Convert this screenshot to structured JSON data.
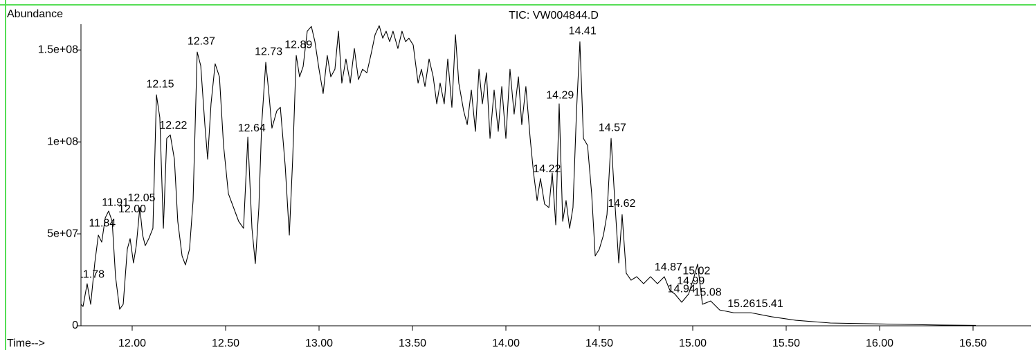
{
  "chart_data": {
    "type": "line",
    "title": "TIC: VW004844.D",
    "y_label": "Abundance",
    "x_label": "Time-->",
    "color": "#000000",
    "xlim": [
      11.726,
      16.811
    ],
    "ylim": [
      0,
      164000000
    ],
    "xticks": [
      {
        "value": 12,
        "label": "12.00"
      },
      {
        "value": 12.5,
        "label": "12.50"
      },
      {
        "value": 13,
        "label": "13.00"
      },
      {
        "value": 13.5,
        "label": "13.50"
      },
      {
        "value": 14,
        "label": "14.00"
      },
      {
        "value": 14.5,
        "label": "14.50"
      },
      {
        "value": 15,
        "label": "15.00"
      },
      {
        "value": 15.5,
        "label": "15.50"
      },
      {
        "value": 16,
        "label": "16.00"
      },
      {
        "value": 16.5,
        "label": "16.50"
      }
    ],
    "yticks": [
      0,
      {
        "value": 50000000,
        "label": "5e+07"
      },
      {
        "value": 100000000,
        "label": "1e+08"
      },
      {
        "value": 150000000,
        "label": "1.5e+08"
      }
    ],
    "x": [
      11.726,
      11.737,
      11.759,
      11.778,
      11.8,
      11.819,
      11.837,
      11.856,
      11.874,
      11.893,
      11.911,
      11.933,
      11.952,
      11.974,
      11.989,
      12.007,
      12.022,
      12.041,
      12.056,
      12.07,
      12.089,
      12.111,
      12.13,
      12.148,
      12.167,
      12.185,
      12.204,
      12.226,
      12.244,
      12.267,
      12.285,
      12.307,
      12.326,
      12.348,
      12.367,
      12.389,
      12.404,
      12.422,
      12.444,
      12.467,
      12.489,
      12.515,
      12.57,
      12.596,
      12.619,
      12.641,
      12.659,
      12.678,
      12.693,
      12.715,
      12.73,
      12.748,
      12.774,
      12.793,
      12.819,
      12.841,
      12.859,
      12.878,
      12.896,
      12.915,
      12.937,
      12.959,
      12.978,
      13.0,
      13.022,
      13.044,
      13.063,
      13.085,
      13.104,
      13.122,
      13.144,
      13.167,
      13.189,
      13.211,
      13.233,
      13.256,
      13.281,
      13.3,
      13.322,
      13.341,
      13.359,
      13.378,
      13.396,
      13.422,
      13.444,
      13.463,
      13.481,
      13.504,
      13.53,
      13.548,
      13.567,
      13.589,
      13.611,
      13.63,
      13.648,
      13.67,
      13.689,
      13.711,
      13.73,
      13.748,
      13.774,
      13.793,
      13.815,
      13.837,
      13.856,
      13.874,
      13.896,
      13.915,
      13.937,
      13.959,
      13.978,
      14.0,
      14.022,
      14.044,
      14.067,
      14.085,
      14.107,
      14.13,
      14.148,
      14.167,
      14.185,
      14.207,
      14.23,
      14.248,
      14.267,
      14.285,
      14.304,
      14.322,
      14.341,
      14.359,
      14.378,
      14.396,
      14.415,
      14.437,
      14.459,
      14.478,
      14.5,
      14.522,
      14.541,
      14.563,
      14.585,
      14.604,
      14.622,
      14.644,
      14.67,
      14.7,
      14.737,
      14.774,
      14.811,
      14.848,
      14.878,
      14.904,
      14.941,
      14.978,
      15.007,
      15.026,
      15.052,
      15.096,
      15.144,
      15.219,
      15.311,
      15.422,
      15.552,
      15.737,
      16.107,
      16.33,
      16.515
    ],
    "values": [
      11700000,
      10500000,
      22900000,
      11700000,
      34200000,
      49300000,
      45500000,
      58700000,
      62400000,
      56800000,
      26700000,
      9000000,
      11700000,
      41700000,
      47400000,
      34200000,
      43600000,
      64300000,
      49300000,
      43600000,
      47400000,
      53000000,
      125600000,
      113200000,
      53000000,
      101900000,
      103800000,
      90600000,
      56800000,
      38000000,
      33100000,
      41700000,
      68100000,
      148900000,
      141400000,
      109400000,
      90600000,
      120700000,
      142500000,
      135400000,
      98100000,
      71800000,
      56800000,
      53000000,
      102600000,
      53000000,
      33800000,
      64300000,
      109400000,
      143300000,
      128200000,
      107500000,
      116900000,
      118800000,
      86900000,
      49300000,
      90600000,
      147000000,
      135400000,
      141000000,
      160200000,
      162800000,
      154500000,
      139500000,
      126300000,
      147000000,
      135400000,
      139500000,
      160200000,
      132000000,
      145100000,
      132000000,
      150800000,
      133900000,
      139500000,
      137600000,
      148900000,
      158300000,
      163200000,
      156400000,
      160200000,
      154500000,
      160200000,
      150800000,
      160200000,
      154500000,
      156400000,
      152700000,
      132000000,
      139500000,
      130100000,
      145100000,
      135400000,
      120700000,
      132000000,
      120700000,
      145100000,
      118800000,
      158300000,
      132000000,
      116900000,
      109400000,
      128200000,
      105700000,
      139500000,
      120700000,
      137600000,
      101900000,
      128200000,
      105700000,
      130100000,
      101900000,
      139500000,
      115100000,
      135400000,
      109400000,
      130100000,
      101900000,
      83100000,
      68100000,
      80100000,
      66200000,
      64300000,
      83100000,
      54900000,
      120700000,
      56800000,
      68100000,
      53000000,
      64300000,
      116900000,
      154500000,
      101900000,
      98100000,
      71800000,
      38000000,
      41700000,
      49300000,
      60500000,
      101900000,
      64300000,
      34200000,
      60500000,
      28600000,
      24800000,
      26700000,
      22900000,
      26700000,
      22900000,
      26700000,
      19200000,
      17300000,
      12800000,
      17300000,
      26700000,
      33500000,
      11700000,
      13500000,
      8600000,
      7100000,
      7100000,
      4900000,
      3000000,
      1500000,
      800000,
      400000,
      200000
    ],
    "annotations": [
      {
        "text": "11.78",
        "x": 11.78,
        "y": 27800000
      },
      {
        "text": "11.84",
        "x": 11.84,
        "y": 55600000
      },
      {
        "text": "11.91",
        "x": 11.91,
        "y": 66900000
      },
      {
        "text": "12.00",
        "x": 12.0,
        "y": 63200000
      },
      {
        "text": "12.05",
        "x": 12.05,
        "y": 69200000
      },
      {
        "text": "12.15",
        "x": 12.15,
        "y": 131200000
      },
      {
        "text": "12.22",
        "x": 12.22,
        "y": 108700000
      },
      {
        "text": "12.37",
        "x": 12.37,
        "y": 154500000
      },
      {
        "text": "12.64",
        "x": 12.64,
        "y": 107200000
      },
      {
        "text": "12.73",
        "x": 12.73,
        "y": 148900000
      },
      {
        "text": "12.89",
        "x": 12.89,
        "y": 152700000
      },
      {
        "text": "14.22",
        "x": 14.22,
        "y": 85000000
      },
      {
        "text": "14.29",
        "x": 14.29,
        "y": 125200000
      },
      {
        "text": "14.41",
        "x": 14.41,
        "y": 160200000
      },
      {
        "text": "14.57",
        "x": 14.57,
        "y": 107500000
      },
      {
        "text": "14.62",
        "x": 14.62,
        "y": 66200000
      },
      {
        "text": "14.87",
        "x": 14.87,
        "y": 31600000
      },
      {
        "text": "14.94",
        "x": 14.94,
        "y": 19900000
      },
      {
        "text": "14.99",
        "x": 14.99,
        "y": 24100000
      },
      {
        "text": "15.02",
        "x": 15.02,
        "y": 29700000
      },
      {
        "text": "15.08",
        "x": 15.08,
        "y": 18000000
      },
      {
        "text": "15.26",
        "x": 15.26,
        "y": 11700000
      },
      {
        "text": "15.41",
        "x": 15.41,
        "y": 11700000
      }
    ]
  }
}
